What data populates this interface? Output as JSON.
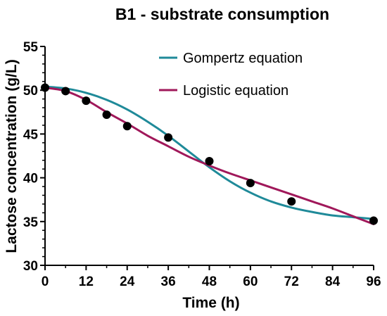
{
  "chart_data": {
    "type": "scatter",
    "title": "B1 - substrate consumption",
    "xlabel": "Time (h)",
    "ylabel": "Lactose concentration (g/L)",
    "xlim": [
      0,
      96
    ],
    "ylim": [
      30,
      55
    ],
    "xticks": [
      0,
      12,
      24,
      36,
      48,
      60,
      72,
      84,
      96
    ],
    "yticks": [
      30,
      35,
      40,
      45,
      50,
      55
    ],
    "grid": false,
    "legend_position": "top-right",
    "observed": {
      "x": [
        0,
        6,
        12,
        18,
        24,
        36,
        48,
        60,
        72,
        96
      ],
      "y": [
        50.3,
        49.9,
        48.8,
        47.2,
        45.9,
        44.6,
        41.9,
        39.4,
        37.3,
        35.1
      ],
      "color": "#000000"
    },
    "series": [
      {
        "name": "Gompertz equation",
        "color": "#1f8a99",
        "x": [
          0,
          6,
          12,
          18,
          24,
          30,
          36,
          42,
          48,
          54,
          60,
          66,
          72,
          78,
          84,
          90,
          96
        ],
        "y": [
          50.4,
          50.2,
          49.7,
          48.9,
          47.8,
          46.4,
          44.8,
          43.0,
          41.2,
          39.6,
          38.3,
          37.3,
          36.6,
          36.1,
          35.7,
          35.5,
          35.3
        ]
      },
      {
        "name": "Logistic equation",
        "color": "#a0185a",
        "x": [
          0,
          6,
          12,
          18,
          24,
          30,
          36,
          42,
          48,
          54,
          60,
          66,
          72,
          78,
          84,
          90,
          96
        ],
        "y": [
          50.3,
          49.9,
          48.9,
          47.5,
          46.2,
          44.8,
          43.6,
          42.4,
          41.4,
          40.5,
          39.7,
          38.9,
          38.1,
          37.3,
          36.5,
          35.6,
          34.7
        ]
      }
    ]
  }
}
